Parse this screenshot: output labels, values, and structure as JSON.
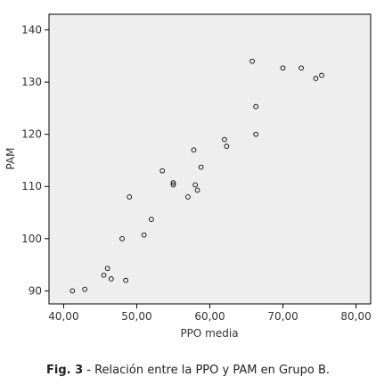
{
  "chart_data": {
    "type": "scatter",
    "title": "",
    "xlabel": "PPO media",
    "ylabel": "PAM",
    "xlim": [
      38,
      82
    ],
    "ylim": [
      87.5,
      143
    ],
    "x_ticks": [
      40,
      50,
      60,
      70,
      80
    ],
    "x_tick_labels": [
      "40,00",
      "50,00",
      "60,00",
      "70,00",
      "80,00"
    ],
    "y_ticks": [
      90,
      100,
      110,
      120,
      130,
      140
    ],
    "y_tick_labels": [
      "90",
      "100",
      "110",
      "120",
      "130",
      "140"
    ],
    "grid": false,
    "legend": "none",
    "marker": "open-circle",
    "plot_background": "#eeeeee",
    "points": [
      {
        "x": 41.2,
        "y": 90.0
      },
      {
        "x": 42.9,
        "y": 90.3
      },
      {
        "x": 45.5,
        "y": 93.0
      },
      {
        "x": 46.0,
        "y": 94.3
      },
      {
        "x": 46.5,
        "y": 92.3
      },
      {
        "x": 48.0,
        "y": 100.0
      },
      {
        "x": 48.5,
        "y": 92.0
      },
      {
        "x": 49.0,
        "y": 108.0
      },
      {
        "x": 51.0,
        "y": 100.7
      },
      {
        "x": 52.0,
        "y": 103.7
      },
      {
        "x": 53.5,
        "y": 113.0
      },
      {
        "x": 55.0,
        "y": 110.7
      },
      {
        "x": 55.0,
        "y": 110.3
      },
      {
        "x": 57.0,
        "y": 108.0
      },
      {
        "x": 57.8,
        "y": 117.0
      },
      {
        "x": 58.0,
        "y": 110.3
      },
      {
        "x": 58.3,
        "y": 109.3
      },
      {
        "x": 58.8,
        "y": 113.7
      },
      {
        "x": 62.0,
        "y": 119.0
      },
      {
        "x": 62.3,
        "y": 117.7
      },
      {
        "x": 65.8,
        "y": 134.0
      },
      {
        "x": 66.3,
        "y": 125.3
      },
      {
        "x": 66.3,
        "y": 120.0
      },
      {
        "x": 70.0,
        "y": 132.7
      },
      {
        "x": 72.5,
        "y": 132.7
      },
      {
        "x": 74.5,
        "y": 130.7
      },
      {
        "x": 75.3,
        "y": 131.3
      }
    ]
  },
  "caption": {
    "label": "Fig. 3",
    "text": " - Relación entre la PPO y PAM en Grupo B."
  }
}
